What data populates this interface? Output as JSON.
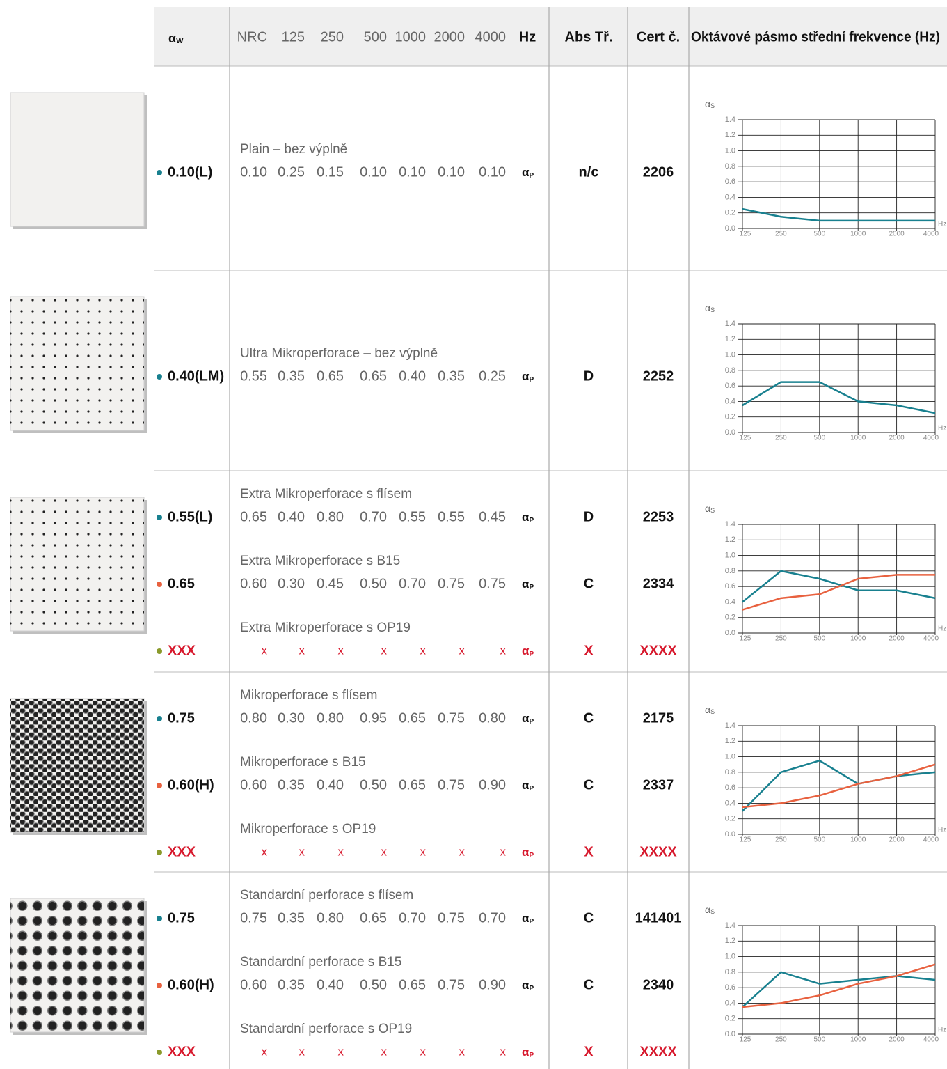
{
  "header": {
    "alpha": "α",
    "alpha_sub": "W",
    "nrc": "NRC",
    "bands": [
      "125",
      "250",
      "500",
      "1000",
      "2000",
      "4000"
    ],
    "unit": "Hz",
    "abs": "Abs Tř.",
    "cert": "Cert č.",
    "chart_title": "Oktávové pásmo střední frekvence (Hz)"
  },
  "alpha_p": {
    "symbol": "α",
    "sub": "P"
  },
  "chart_axes": {
    "y_symbol": "α",
    "y_sub": "S",
    "ylim": [
      0,
      1.4
    ],
    "yticks": [
      {
        "value": 0,
        "label": "0.0"
      },
      {
        "value": 0.2,
        "label": "0.2"
      },
      {
        "value": 0.4,
        "label": "0.4"
      },
      {
        "value": 0.6,
        "label": "0.6"
      },
      {
        "value": 0.8,
        "label": "0.8"
      },
      {
        "value": 1,
        "label": "1.0"
      },
      {
        "value": 1.2,
        "label": "1.2"
      },
      {
        "value": 1.4,
        "label": "1.4"
      }
    ],
    "x_unit": "Hz"
  },
  "groups": [
    {
      "entries": [
        {
          "color": "#18808f",
          "alpha_w": "0.10(L)",
          "name": "Plain – bez výplně",
          "values": [
            0.1,
            0.25,
            0.15,
            0.1,
            0.1,
            0.1,
            0.1
          ],
          "value_labels": [
            "0.10",
            "0.25",
            "0.15",
            "0.10",
            "0.10",
            "0.10",
            "0.10"
          ],
          "abs_class": "n/c",
          "cert": "2206"
        }
      ]
    },
    {
      "entries": [
        {
          "color": "#18808f",
          "alpha_w": "0.40(LM)",
          "name": "Ultra Mikroperforace – bez výplně",
          "values": [
            0.55,
            0.35,
            0.65,
            0.65,
            0.4,
            0.35,
            0.25
          ],
          "value_labels": [
            "0.55",
            "0.35",
            "0.65",
            "0.65",
            "0.40",
            "0.35",
            "0.25"
          ],
          "abs_class": "D",
          "cert": "2252"
        }
      ]
    },
    {
      "entries": [
        {
          "color": "#18808f",
          "alpha_w": "0.55(L)",
          "name": "Extra Mikroperforace s flísem",
          "values": [
            0.65,
            0.4,
            0.8,
            0.7,
            0.55,
            0.55,
            0.45
          ],
          "value_labels": [
            "0.65",
            "0.40",
            "0.80",
            "0.70",
            "0.55",
            "0.55",
            "0.45"
          ],
          "abs_class": "D",
          "cert": "2253"
        },
        {
          "color": "#e8613f",
          "alpha_w": "0.65",
          "name": "Extra Mikroperforace s B15",
          "values": [
            0.6,
            0.3,
            0.45,
            0.5,
            0.7,
            0.75,
            0.75
          ],
          "value_labels": [
            "0.60",
            "0.30",
            "0.45",
            "0.50",
            "0.70",
            "0.75",
            "0.75"
          ],
          "abs_class": "C",
          "cert": "2334"
        },
        {
          "color": "#8a9a2b",
          "text_color": "#d7192d",
          "alpha_w": "XXX",
          "name": "Extra Mikroperforace s OP19",
          "value_labels": [
            "x",
            "x",
            "x",
            "x",
            "x",
            "x",
            "x"
          ],
          "abs_class": "X",
          "cert": "XXXX"
        }
      ]
    },
    {
      "entries": [
        {
          "color": "#18808f",
          "alpha_w": "0.75",
          "name": "Mikroperforace s flísem",
          "values": [
            0.8,
            0.3,
            0.8,
            0.95,
            0.65,
            0.75,
            0.8
          ],
          "value_labels": [
            "0.80",
            "0.30",
            "0.80",
            "0.95",
            "0.65",
            "0.75",
            "0.80"
          ],
          "abs_class": "C",
          "cert": "2175"
        },
        {
          "color": "#e8613f",
          "alpha_w": "0.60(H)",
          "name": "Mikroperforace s B15",
          "values": [
            0.6,
            0.35,
            0.4,
            0.5,
            0.65,
            0.75,
            0.9
          ],
          "value_labels": [
            "0.60",
            "0.35",
            "0.40",
            "0.50",
            "0.65",
            "0.75",
            "0.90"
          ],
          "abs_class": "C",
          "cert": "2337"
        },
        {
          "color": "#8a9a2b",
          "text_color": "#d7192d",
          "alpha_w": "XXX",
          "name": "Mikroperforace s OP19",
          "value_labels": [
            "x",
            "x",
            "x",
            "x",
            "x",
            "x",
            "x"
          ],
          "abs_class": "X",
          "cert": "XXXX"
        }
      ]
    },
    {
      "entries": [
        {
          "color": "#18808f",
          "alpha_w": "0.75",
          "name": "Standardní perforace s flísem",
          "values": [
            0.75,
            0.35,
            0.8,
            0.65,
            0.7,
            0.75,
            0.7
          ],
          "value_labels": [
            "0.75",
            "0.35",
            "0.80",
            "0.65",
            "0.70",
            "0.75",
            "0.70"
          ],
          "abs_class": "C",
          "cert": "141401"
        },
        {
          "color": "#e8613f",
          "alpha_w": "0.60(H)",
          "name": "Standardní perforace s B15",
          "values": [
            0.6,
            0.35,
            0.4,
            0.5,
            0.65,
            0.75,
            0.9
          ],
          "value_labels": [
            "0.60",
            "0.35",
            "0.40",
            "0.50",
            "0.65",
            "0.75",
            "0.90"
          ],
          "abs_class": "C",
          "cert": "2340"
        },
        {
          "color": "#8a9a2b",
          "text_color": "#d7192d",
          "alpha_w": "XXX",
          "name": "Standardní perforace s OP19",
          "value_labels": [
            "x",
            "x",
            "x",
            "x",
            "x",
            "x",
            "x"
          ],
          "abs_class": "X",
          "cert": "XXXX"
        }
      ]
    }
  ]
}
